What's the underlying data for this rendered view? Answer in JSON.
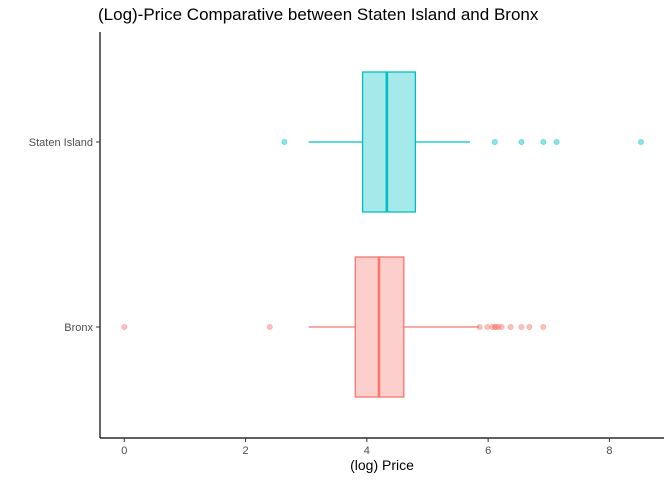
{
  "chart_data": {
    "type": "boxplot",
    "orientation": "horizontal",
    "title": "(Log)-Price Comparative between Staten Island and Bronx",
    "xlabel": "(log) Price",
    "ylabel": "",
    "xlim": [
      -0.4,
      8.9
    ],
    "x_ticks": [
      0,
      2,
      4,
      6,
      8
    ],
    "grid": false,
    "legend": "none",
    "categories": [
      "Bronx",
      "Staten Island"
    ],
    "series": [
      {
        "name": "Bronx",
        "color": "#F8766D",
        "fill": "#F8766D",
        "whisker_low": 3.04,
        "q1": 3.81,
        "median": 4.2,
        "q3": 4.61,
        "whisker_high": 5.85,
        "outliers": [
          0.0,
          2.4,
          5.86,
          5.99,
          6.07,
          6.11,
          6.13,
          6.17,
          6.22,
          6.37,
          6.55,
          6.68,
          6.91
        ]
      },
      {
        "name": "Staten Island",
        "color": "#00BFC4",
        "fill": "#00BFC4",
        "whisker_low": 3.04,
        "q1": 3.93,
        "median": 4.33,
        "q3": 4.8,
        "whisker_high": 5.7,
        "outliers": [
          2.64,
          6.11,
          6.55,
          6.91,
          7.13,
          8.52
        ]
      }
    ]
  }
}
